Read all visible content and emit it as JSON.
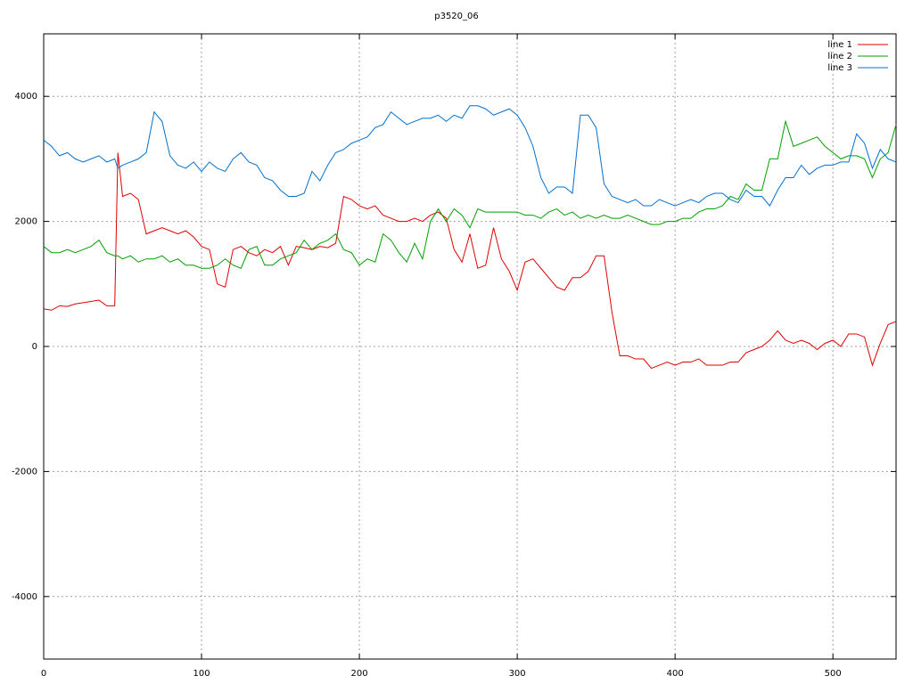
{
  "chart_data": {
    "type": "line",
    "title": "p3520_06",
    "x": [
      0,
      5,
      10,
      15,
      20,
      25,
      30,
      35,
      40,
      45,
      47,
      50,
      55,
      60,
      65,
      70,
      75,
      80,
      85,
      90,
      95,
      100,
      105,
      110,
      115,
      120,
      125,
      130,
      135,
      140,
      145,
      150,
      155,
      160,
      165,
      170,
      175,
      180,
      185,
      190,
      195,
      200,
      205,
      210,
      215,
      220,
      225,
      230,
      235,
      240,
      245,
      250,
      255,
      260,
      265,
      270,
      275,
      280,
      285,
      290,
      295,
      300,
      305,
      310,
      315,
      320,
      325,
      330,
      335,
      340,
      345,
      350,
      355,
      360,
      365,
      370,
      375,
      380,
      385,
      390,
      395,
      400,
      405,
      410,
      415,
      420,
      425,
      430,
      435,
      440,
      445,
      450,
      455,
      460,
      465,
      470,
      475,
      480,
      485,
      490,
      495,
      500,
      505,
      510,
      515,
      520,
      525,
      530,
      535,
      540
    ],
    "series": [
      {
        "name": "line 1",
        "color": "#e00000",
        "values": [
          600,
          580,
          650,
          640,
          680,
          700,
          720,
          740,
          650,
          650,
          3100,
          2400,
          2450,
          2350,
          1800,
          1850,
          1900,
          1850,
          1800,
          1850,
          1750,
          1600,
          1550,
          1000,
          950,
          1550,
          1600,
          1500,
          1450,
          1550,
          1500,
          1600,
          1300,
          1600,
          1580,
          1550,
          1600,
          1580,
          1650,
          2400,
          2350,
          2250,
          2200,
          2250,
          2100,
          2050,
          2000,
          2000,
          2050,
          2000,
          2100,
          2150,
          2050,
          1550,
          1350,
          1800,
          1250,
          1300,
          1900,
          1400,
          1200,
          900,
          1350,
          1400,
          1250,
          1100,
          950,
          900,
          1100,
          1100,
          1200,
          1450,
          1450,
          550,
          -150,
          -150,
          -200,
          -200,
          -350,
          -300,
          -250,
          -300,
          -250,
          -250,
          -200,
          -300,
          -300,
          -300,
          -250,
          -250,
          -100,
          -50,
          0,
          100,
          250,
          100,
          50,
          100,
          50,
          -50,
          50,
          100,
          0,
          200,
          200,
          150,
          -300,
          50,
          350,
          400
        ]
      },
      {
        "name": "line 2",
        "color": "#00a000",
        "values": [
          1600,
          1500,
          1500,
          1550,
          1500,
          1550,
          1600,
          1700,
          1500,
          1450,
          1450,
          1400,
          1450,
          1350,
          1400,
          1400,
          1450,
          1350,
          1400,
          1300,
          1300,
          1250,
          1250,
          1300,
          1400,
          1300,
          1250,
          1550,
          1600,
          1300,
          1300,
          1400,
          1450,
          1500,
          1700,
          1550,
          1650,
          1700,
          1800,
          1550,
          1500,
          1300,
          1400,
          1350,
          1800,
          1700,
          1500,
          1350,
          1650,
          1400,
          2000,
          2200,
          2000,
          2200,
          2100,
          1900,
          2200,
          2150,
          2150,
          2150,
          2150,
          2150,
          2100,
          2100,
          2050,
          2150,
          2200,
          2100,
          2150,
          2050,
          2100,
          2050,
          2100,
          2050,
          2050,
          2100,
          2050,
          2000,
          1950,
          1950,
          2000,
          2000,
          2050,
          2050,
          2150,
          2200,
          2200,
          2250,
          2400,
          2350,
          2600,
          2500,
          2500,
          3000,
          3000,
          3600,
          3200,
          3250,
          3300,
          3350,
          3200,
          3100,
          3000,
          3050,
          3050,
          3000,
          2700,
          3000,
          3100,
          3550
        ]
      },
      {
        "name": "line 3",
        "color": "#0070d0",
        "values": [
          3300,
          3200,
          3050,
          3100,
          3000,
          2950,
          3000,
          3050,
          2950,
          3000,
          2850,
          2900,
          2950,
          3000,
          3100,
          3750,
          3600,
          3050,
          2900,
          2850,
          2950,
          2800,
          2950,
          2850,
          2800,
          3000,
          3100,
          2950,
          2900,
          2700,
          2650,
          2500,
          2400,
          2400,
          2450,
          2800,
          2650,
          2900,
          3100,
          3150,
          3250,
          3300,
          3350,
          3500,
          3550,
          3750,
          3650,
          3550,
          3600,
          3650,
          3650,
          3700,
          3600,
          3700,
          3650,
          3850,
          3850,
          3800,
          3700,
          3750,
          3800,
          3700,
          3500,
          3200,
          2700,
          2450,
          2550,
          2550,
          2450,
          3700,
          3700,
          3500,
          2600,
          2400,
          2350,
          2300,
          2350,
          2250,
          2250,
          2350,
          2300,
          2250,
          2300,
          2350,
          2300,
          2400,
          2450,
          2450,
          2350,
          2300,
          2500,
          2400,
          2400,
          2250,
          2500,
          2700,
          2700,
          2900,
          2750,
          2850,
          2900,
          2900,
          2950,
          2950,
          3400,
          3250,
          2850,
          3150,
          3000,
          2950
        ]
      }
    ],
    "xlim": [
      0,
      540
    ],
    "ylim": [
      -5000,
      5000
    ],
    "xticks": [
      0,
      100,
      200,
      300,
      400,
      500
    ],
    "yticks": [
      -4000,
      -2000,
      0,
      2000,
      4000
    ],
    "grid": true,
    "legend": "top-right"
  }
}
